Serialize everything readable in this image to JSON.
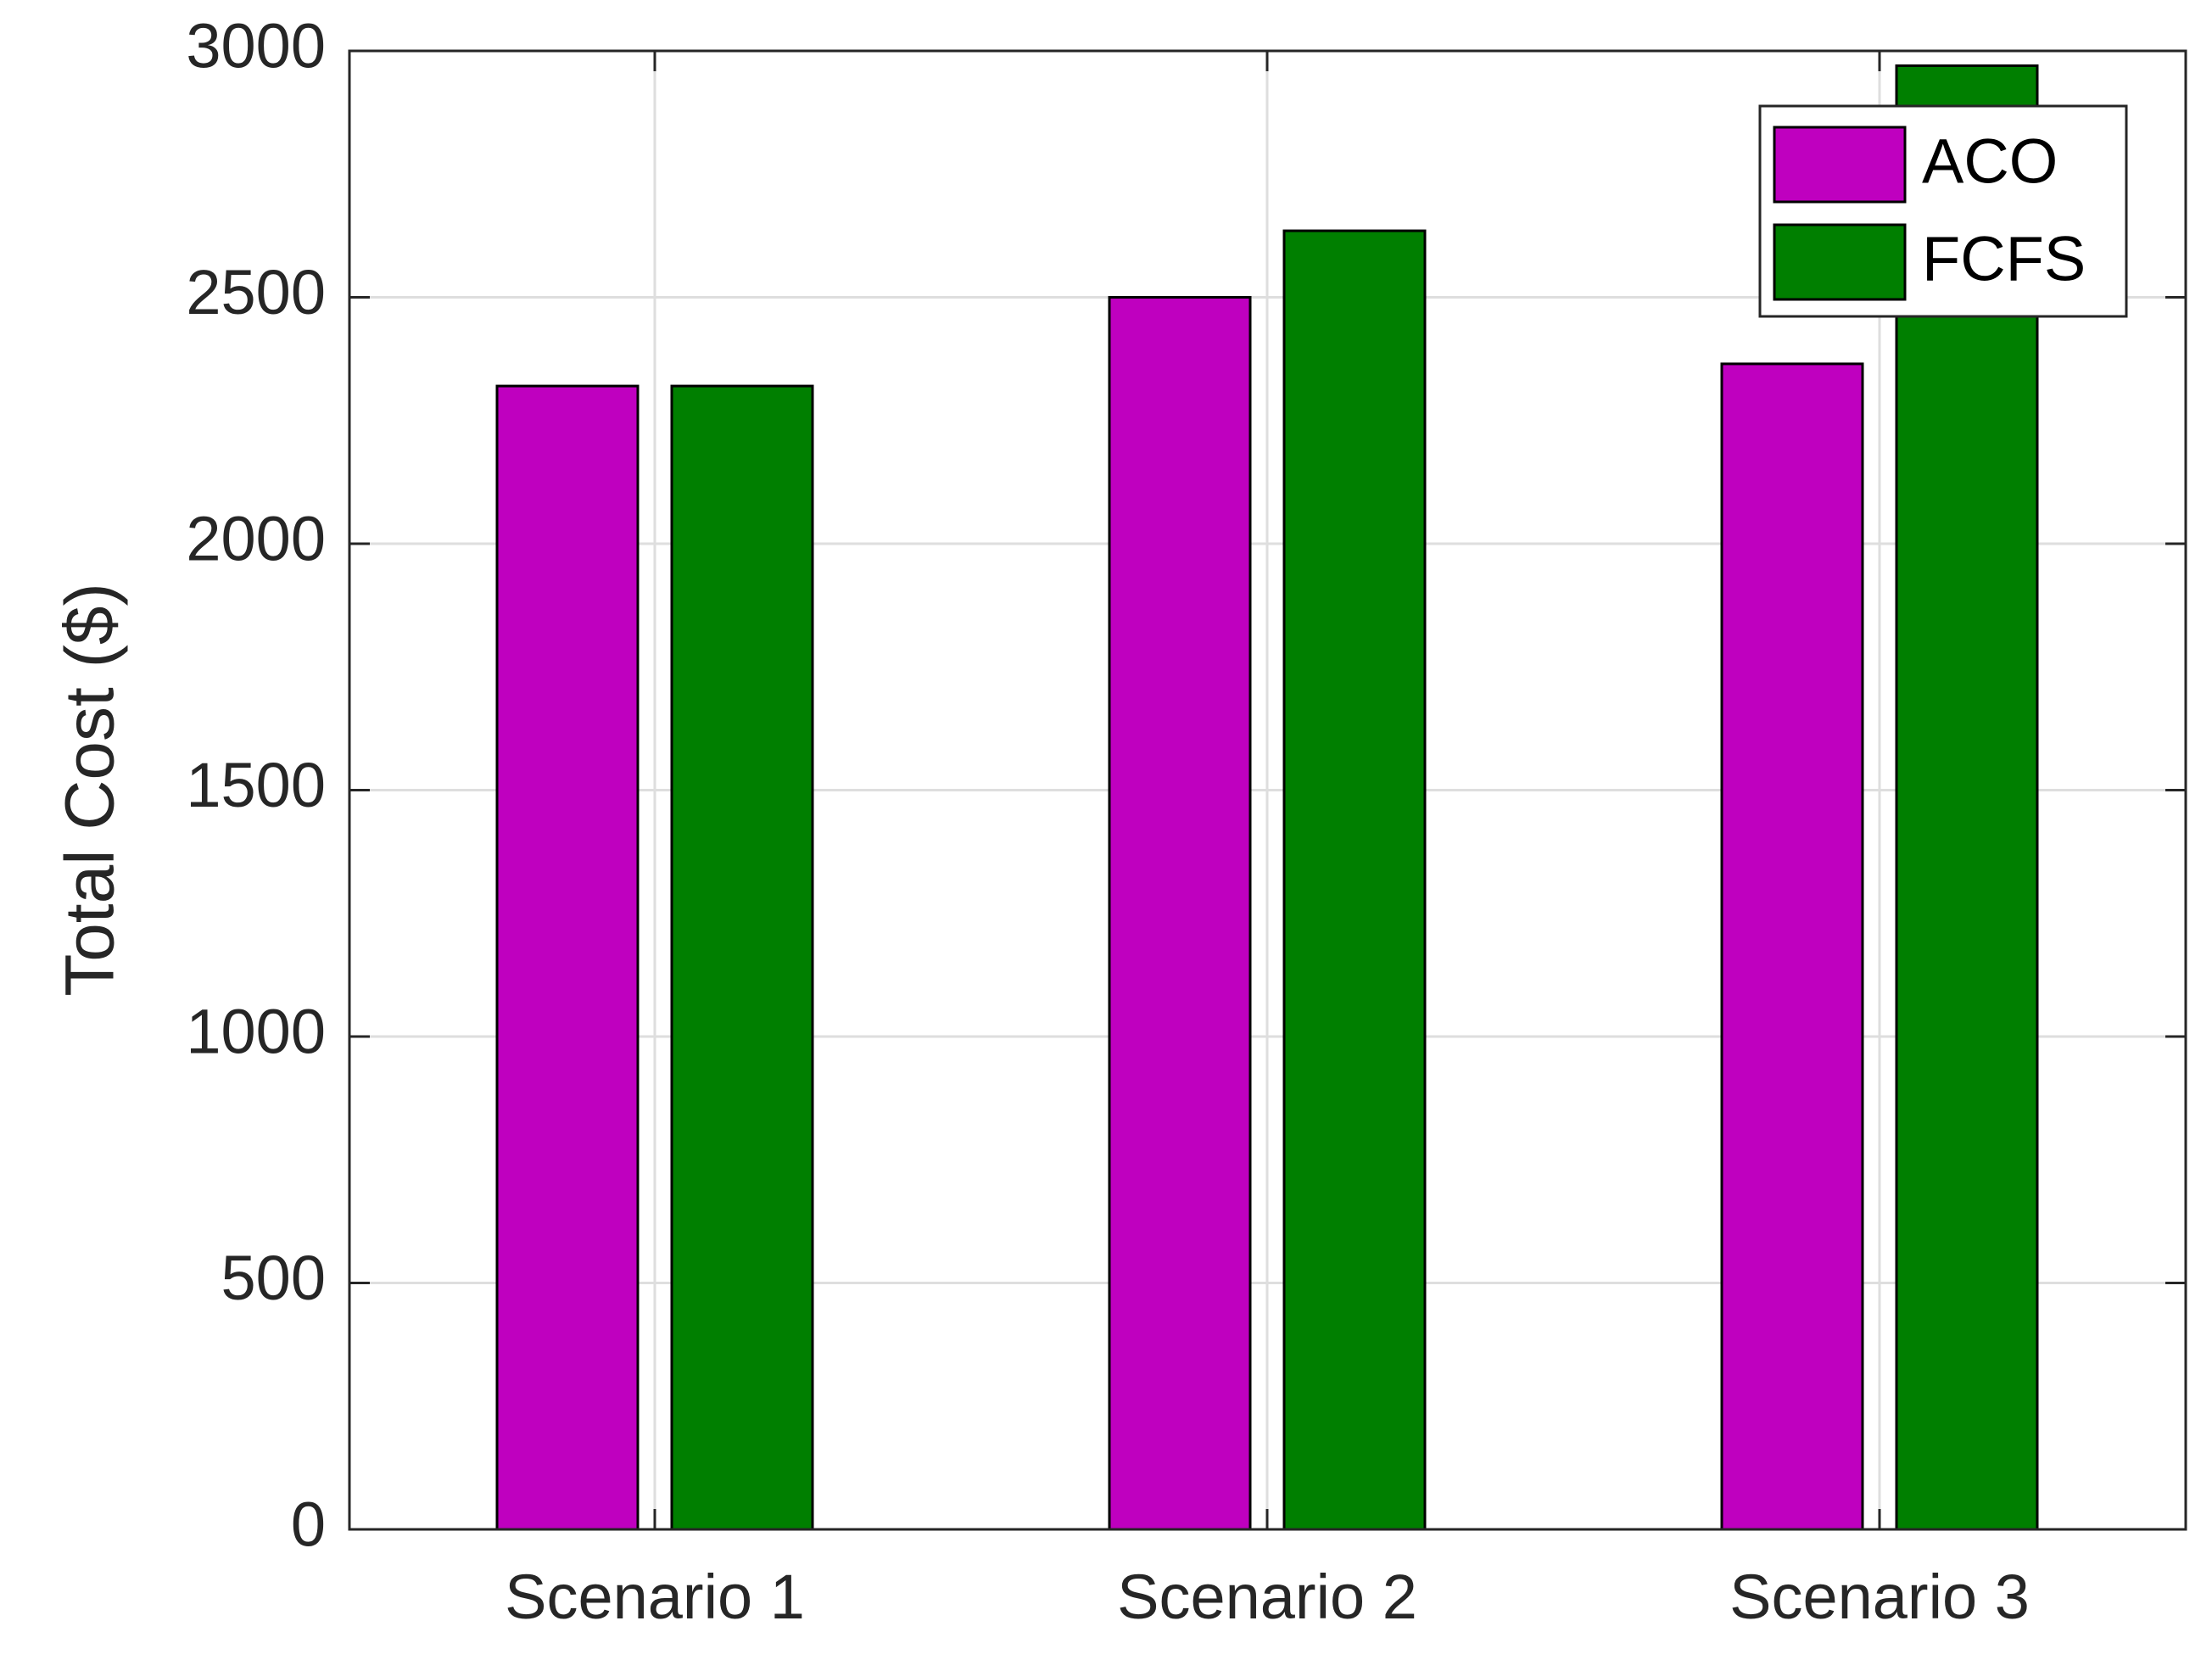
{
  "chart_data": {
    "type": "bar",
    "title": "",
    "xlabel": "",
    "ylabel": "Total Cost ($)",
    "categories": [
      "Scenario 1",
      "Scenario 2",
      "Scenario 3"
    ],
    "series": [
      {
        "name": "ACO",
        "color": "#bf00bf",
        "values": [
          2320,
          2500,
          2365
        ]
      },
      {
        "name": "FCFS",
        "color": "#007f00",
        "values": [
          2320,
          2635,
          2970
        ]
      }
    ],
    "ylim": [
      0,
      3000
    ],
    "yticks": [
      "0",
      "500",
      "1000",
      "1500",
      "2000",
      "2500",
      "3000"
    ],
    "grid": true,
    "legend_position": "top-right"
  }
}
